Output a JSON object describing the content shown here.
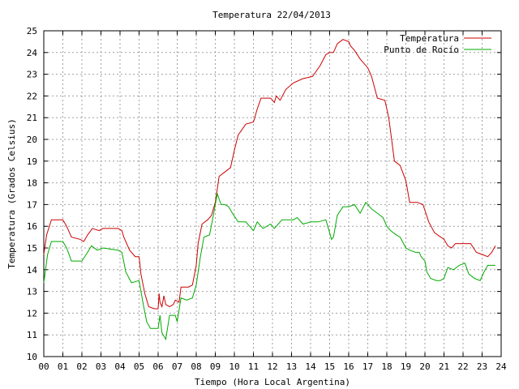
{
  "chart_data": {
    "type": "line",
    "title": "Temperatura 22/04/2013",
    "xlabel": "Tiempo (Hora Local Argentina)",
    "ylabel": "Temperatura (Grados Celsius)",
    "xlim": [
      0,
      24
    ],
    "ylim": [
      10,
      25
    ],
    "xticks": [
      "00",
      "01",
      "02",
      "03",
      "04",
      "05",
      "06",
      "07",
      "08",
      "09",
      "10",
      "11",
      "12",
      "13",
      "14",
      "15",
      "16",
      "17",
      "18",
      "19",
      "20",
      "21",
      "22",
      "23",
      "24"
    ],
    "yticks": [
      "10",
      "11",
      "12",
      "13",
      "14",
      "15",
      "16",
      "17",
      "18",
      "19",
      "20",
      "21",
      "22",
      "23",
      "24",
      "25"
    ],
    "grid": true,
    "legend_position": "top-right",
    "series": [
      {
        "name": "Temperatura",
        "color": "#cc0000",
        "points": [
          [
            0.0,
            14.7
          ],
          [
            0.15,
            15.6
          ],
          [
            0.4,
            16.3
          ],
          [
            1.0,
            16.3
          ],
          [
            1.2,
            16.0
          ],
          [
            1.45,
            15.5
          ],
          [
            1.9,
            15.4
          ],
          [
            2.1,
            15.3
          ],
          [
            2.3,
            15.6
          ],
          [
            2.55,
            15.9
          ],
          [
            2.9,
            15.8
          ],
          [
            3.1,
            15.9
          ],
          [
            3.5,
            15.9
          ],
          [
            3.9,
            15.9
          ],
          [
            4.1,
            15.8
          ],
          [
            4.2,
            15.5
          ],
          [
            4.5,
            14.9
          ],
          [
            4.8,
            14.6
          ],
          [
            5.0,
            14.6
          ],
          [
            5.1,
            13.8
          ],
          [
            5.3,
            12.9
          ],
          [
            5.5,
            12.3
          ],
          [
            5.8,
            12.2
          ],
          [
            6.0,
            12.2
          ],
          [
            6.05,
            12.9
          ],
          [
            6.1,
            12.5
          ],
          [
            6.2,
            12.3
          ],
          [
            6.3,
            12.8
          ],
          [
            6.4,
            12.4
          ],
          [
            6.6,
            12.3
          ],
          [
            6.8,
            12.4
          ],
          [
            6.9,
            12.6
          ],
          [
            7.1,
            12.5
          ],
          [
            7.2,
            13.2
          ],
          [
            7.6,
            13.2
          ],
          [
            7.8,
            13.3
          ],
          [
            8.0,
            14.2
          ],
          [
            8.1,
            15.2
          ],
          [
            8.3,
            16.1
          ],
          [
            8.6,
            16.3
          ],
          [
            8.8,
            16.5
          ],
          [
            9.0,
            17.1
          ],
          [
            9.2,
            18.3
          ],
          [
            9.5,
            18.5
          ],
          [
            9.8,
            18.7
          ],
          [
            10.0,
            19.5
          ],
          [
            10.2,
            20.2
          ],
          [
            10.6,
            20.7
          ],
          [
            11.0,
            20.8
          ],
          [
            11.2,
            21.4
          ],
          [
            11.4,
            21.9
          ],
          [
            11.9,
            21.9
          ],
          [
            12.1,
            21.7
          ],
          [
            12.2,
            22.0
          ],
          [
            12.4,
            21.8
          ],
          [
            12.7,
            22.3
          ],
          [
            13.1,
            22.6
          ],
          [
            13.6,
            22.8
          ],
          [
            14.1,
            22.9
          ],
          [
            14.5,
            23.4
          ],
          [
            14.8,
            23.9
          ],
          [
            15.0,
            24.0
          ],
          [
            15.2,
            24.0
          ],
          [
            15.4,
            24.4
          ],
          [
            15.7,
            24.6
          ],
          [
            16.0,
            24.5
          ],
          [
            16.1,
            24.3
          ],
          [
            16.3,
            24.1
          ],
          [
            16.6,
            23.7
          ],
          [
            17.0,
            23.3
          ],
          [
            17.2,
            22.9
          ],
          [
            17.5,
            21.9
          ],
          [
            17.9,
            21.8
          ],
          [
            18.1,
            21.0
          ],
          [
            18.4,
            19.0
          ],
          [
            18.7,
            18.8
          ],
          [
            19.0,
            18.1
          ],
          [
            19.2,
            17.1
          ],
          [
            19.6,
            17.1
          ],
          [
            19.9,
            17.0
          ],
          [
            20.2,
            16.2
          ],
          [
            20.5,
            15.7
          ],
          [
            21.0,
            15.4
          ],
          [
            21.2,
            15.1
          ],
          [
            21.4,
            15.0
          ],
          [
            21.6,
            15.2
          ],
          [
            22.0,
            15.2
          ],
          [
            22.4,
            15.2
          ],
          [
            22.7,
            14.8
          ],
          [
            23.0,
            14.7
          ],
          [
            23.3,
            14.6
          ],
          [
            23.5,
            14.8
          ],
          [
            23.7,
            15.1
          ]
        ]
      },
      {
        "name": "Punto de Rocío",
        "color": "#00aa00",
        "points": [
          [
            0.0,
            13.4
          ],
          [
            0.2,
            14.7
          ],
          [
            0.4,
            15.3
          ],
          [
            1.0,
            15.3
          ],
          [
            1.2,
            15.0
          ],
          [
            1.45,
            14.4
          ],
          [
            2.0,
            14.4
          ],
          [
            2.3,
            14.8
          ],
          [
            2.5,
            15.1
          ],
          [
            2.8,
            14.9
          ],
          [
            3.1,
            15.0
          ],
          [
            3.9,
            14.9
          ],
          [
            4.1,
            14.8
          ],
          [
            4.3,
            13.9
          ],
          [
            4.6,
            13.4
          ],
          [
            5.0,
            13.5
          ],
          [
            5.2,
            12.5
          ],
          [
            5.4,
            11.6
          ],
          [
            5.6,
            11.3
          ],
          [
            6.0,
            11.3
          ],
          [
            6.1,
            11.9
          ],
          [
            6.2,
            11.1
          ],
          [
            6.4,
            10.8
          ],
          [
            6.6,
            11.9
          ],
          [
            6.9,
            11.9
          ],
          [
            7.0,
            11.6
          ],
          [
            7.2,
            12.7
          ],
          [
            7.5,
            12.6
          ],
          [
            7.8,
            12.7
          ],
          [
            8.0,
            13.3
          ],
          [
            8.2,
            14.5
          ],
          [
            8.4,
            15.5
          ],
          [
            8.7,
            15.6
          ],
          [
            8.9,
            16.5
          ],
          [
            9.1,
            17.5
          ],
          [
            9.3,
            17.0
          ],
          [
            9.5,
            17.0
          ],
          [
            9.7,
            16.9
          ],
          [
            9.9,
            16.6
          ],
          [
            10.2,
            16.2
          ],
          [
            10.6,
            16.2
          ],
          [
            11.0,
            15.8
          ],
          [
            11.2,
            16.2
          ],
          [
            11.5,
            15.9
          ],
          [
            11.9,
            16.1
          ],
          [
            12.1,
            15.9
          ],
          [
            12.3,
            16.1
          ],
          [
            12.5,
            16.3
          ],
          [
            12.9,
            16.3
          ],
          [
            13.1,
            16.3
          ],
          [
            13.3,
            16.4
          ],
          [
            13.6,
            16.1
          ],
          [
            14.0,
            16.2
          ],
          [
            14.4,
            16.2
          ],
          [
            14.8,
            16.3
          ],
          [
            15.0,
            15.7
          ],
          [
            15.1,
            15.4
          ],
          [
            15.2,
            15.5
          ],
          [
            15.4,
            16.5
          ],
          [
            15.7,
            16.9
          ],
          [
            16.0,
            16.9
          ],
          [
            16.3,
            17.0
          ],
          [
            16.6,
            16.6
          ],
          [
            16.9,
            17.1
          ],
          [
            17.2,
            16.8
          ],
          [
            17.5,
            16.6
          ],
          [
            17.8,
            16.4
          ],
          [
            18.0,
            16.0
          ],
          [
            18.2,
            15.8
          ],
          [
            18.5,
            15.6
          ],
          [
            18.7,
            15.5
          ],
          [
            19.0,
            15.0
          ],
          [
            19.2,
            14.9
          ],
          [
            19.5,
            14.8
          ],
          [
            19.7,
            14.8
          ],
          [
            19.8,
            14.6
          ],
          [
            20.0,
            14.4
          ],
          [
            20.1,
            13.9
          ],
          [
            20.3,
            13.6
          ],
          [
            20.6,
            13.5
          ],
          [
            20.8,
            13.5
          ],
          [
            21.0,
            13.6
          ],
          [
            21.2,
            14.1
          ],
          [
            21.5,
            14.0
          ],
          [
            21.8,
            14.2
          ],
          [
            22.1,
            14.3
          ],
          [
            22.3,
            13.8
          ],
          [
            22.6,
            13.6
          ],
          [
            22.9,
            13.5
          ],
          [
            23.1,
            13.9
          ],
          [
            23.3,
            14.2
          ],
          [
            23.5,
            14.2
          ],
          [
            23.7,
            14.2
          ]
        ]
      }
    ]
  }
}
